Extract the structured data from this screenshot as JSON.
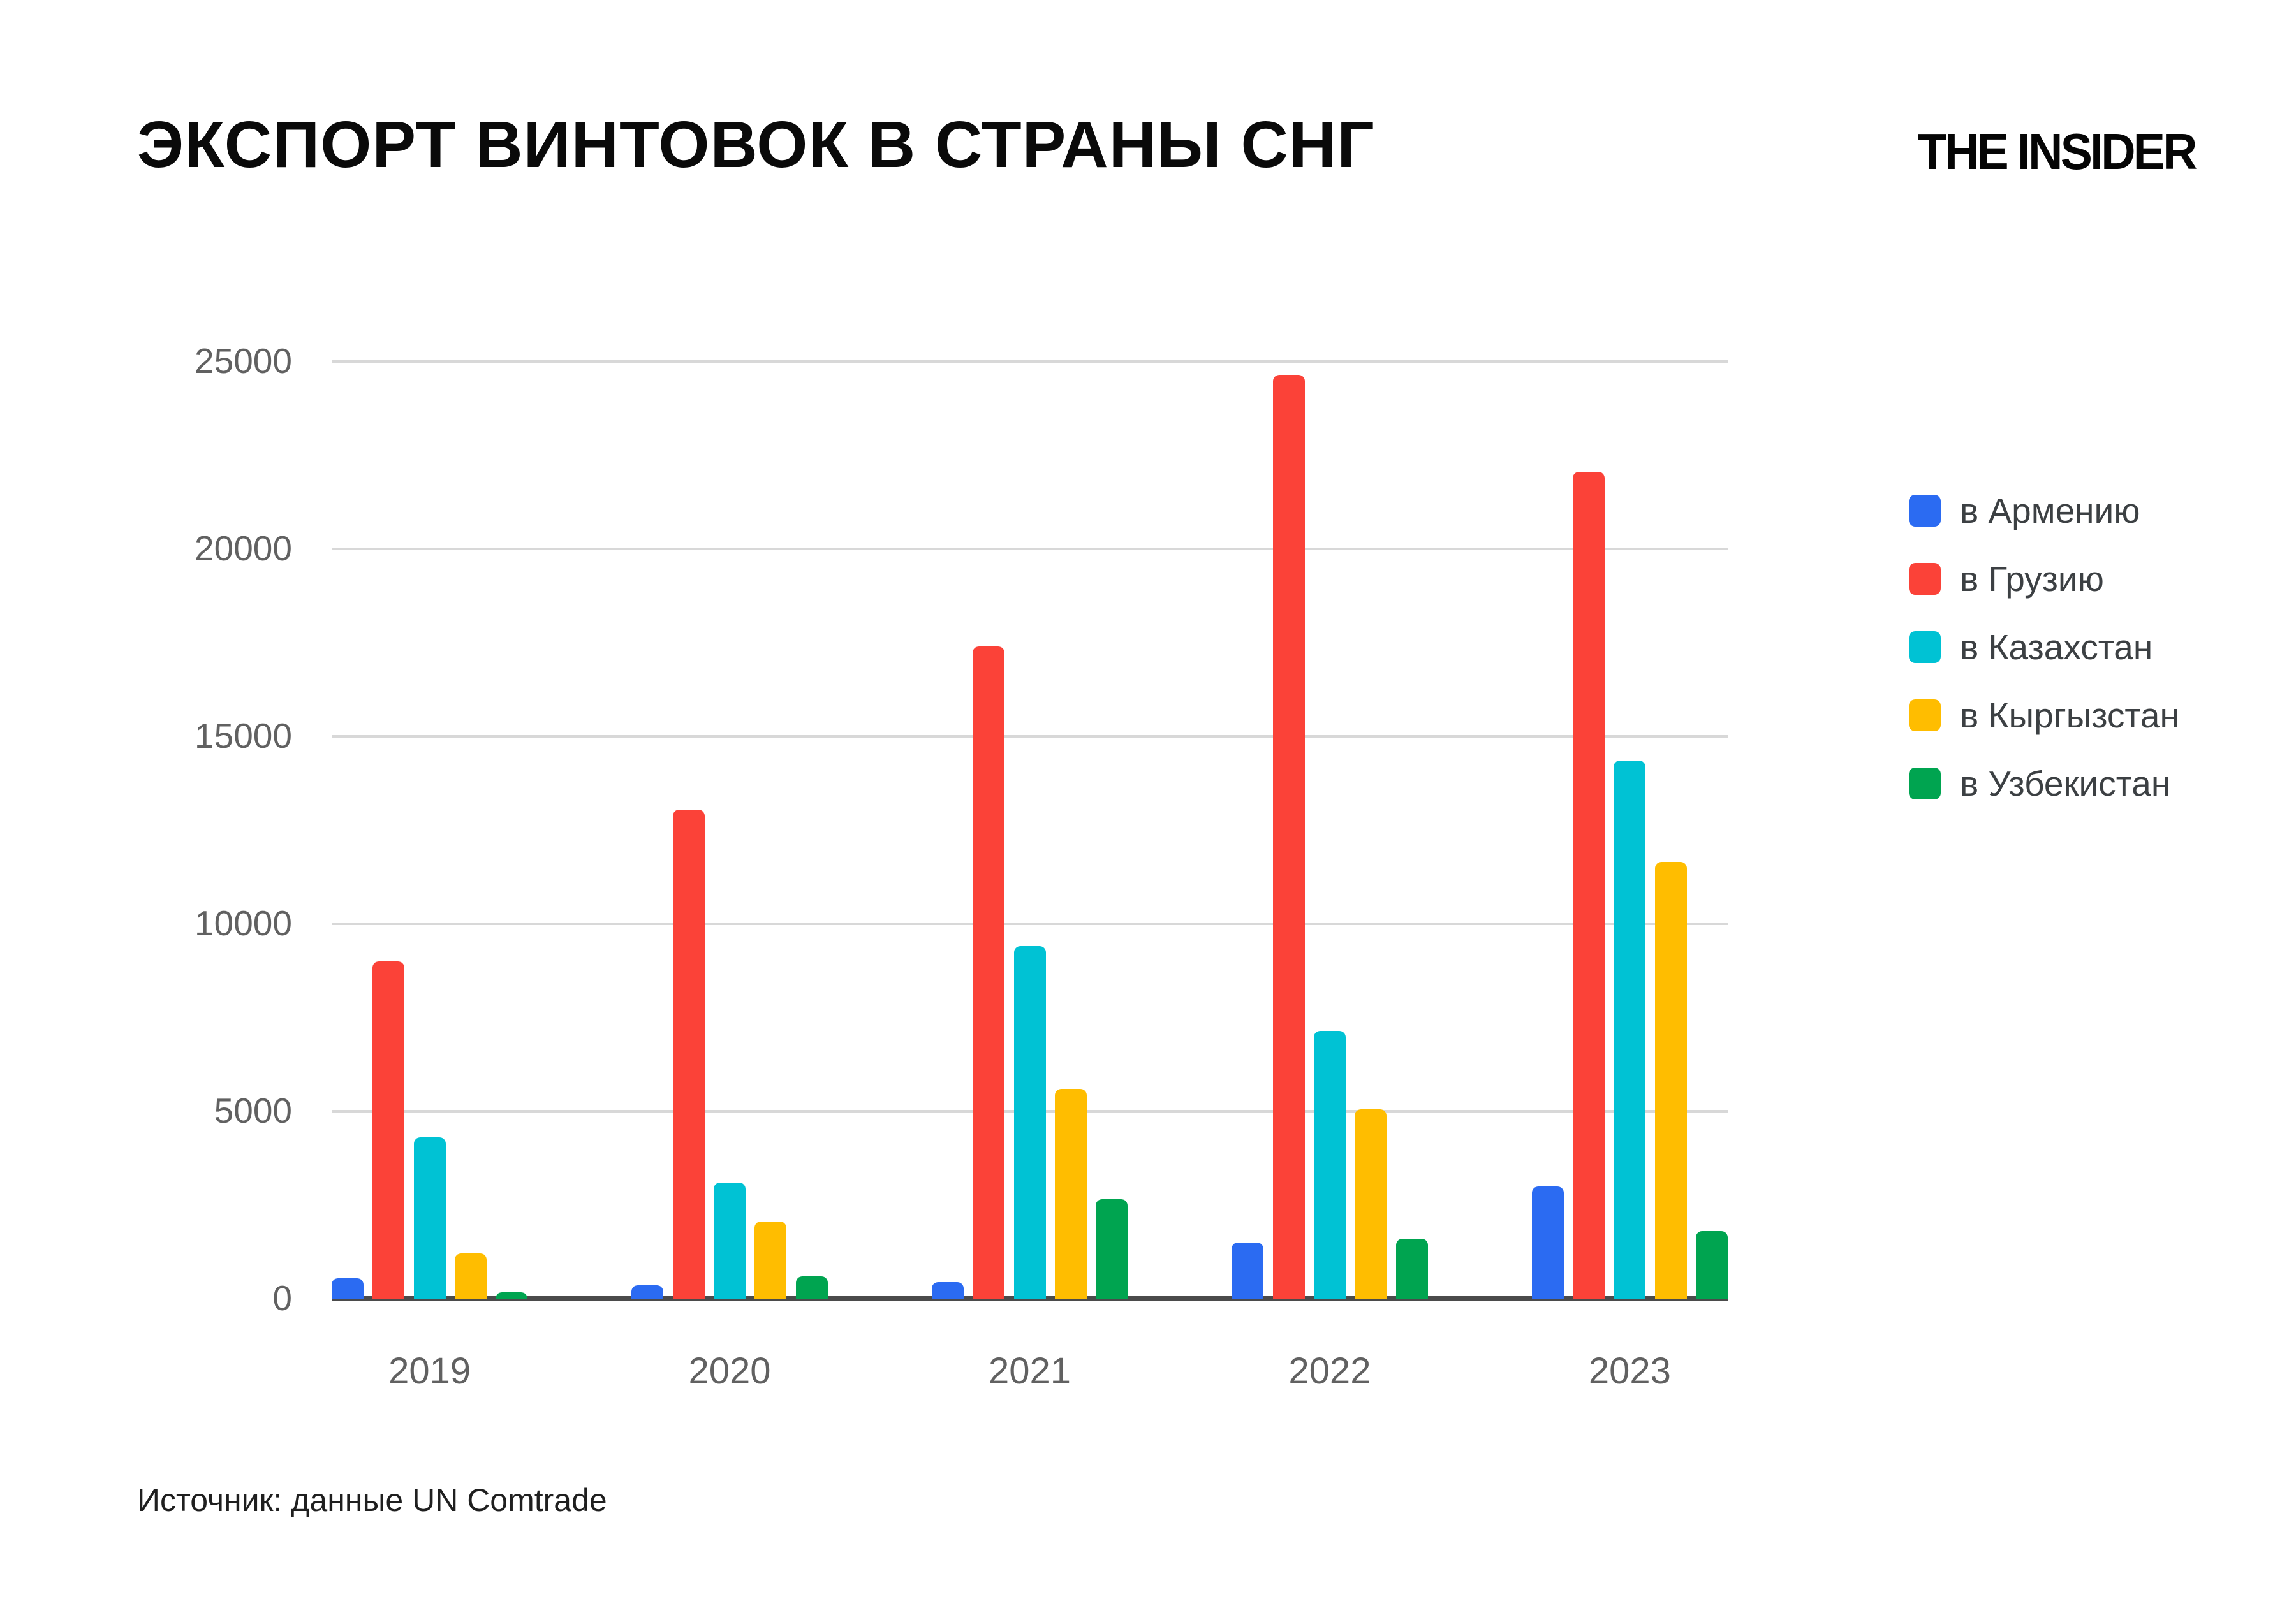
{
  "header": {
    "title": "ЭКСПОРТ ВИНТОВОК В СТРАНЫ СНГ",
    "brand": "THE INSIDER"
  },
  "source_note": "Источник: данные UN Comtrade",
  "chart_data": {
    "type": "bar",
    "title": "ЭКСПОРТ ВИНТОВОК В СТРАНЫ СНГ",
    "categories": [
      "2019",
      "2020",
      "2021",
      "2022",
      "2023"
    ],
    "series": [
      {
        "name": "в Армению",
        "color": "#2b6bf2",
        "values": [
          550,
          350,
          450,
          1500,
          3000
        ]
      },
      {
        "name": "в Грузию",
        "color": "#fb4238",
        "values": [
          9000,
          13050,
          17400,
          24650,
          22050
        ]
      },
      {
        "name": "в Казахстан",
        "color": "#00c2d4",
        "values": [
          4300,
          3100,
          9400,
          7150,
          14350
        ]
      },
      {
        "name": "в Кыргызстан",
        "color": "#ffbd00",
        "values": [
          1200,
          2050,
          5600,
          5050,
          11650
        ]
      },
      {
        "name": "в Узбекистан",
        "color": "#00a450",
        "values": [
          170,
          600,
          2650,
          1600,
          1800
        ]
      }
    ],
    "ylim": [
      0,
      25000
    ],
    "yticks": [
      0,
      5000,
      10000,
      15000,
      20000,
      25000
    ],
    "grid": true,
    "legend_position": "right",
    "style": {
      "grid_color": "#d8d8d8",
      "axis_color": "#4b4b4b",
      "tick_label_color": "#616161"
    }
  }
}
